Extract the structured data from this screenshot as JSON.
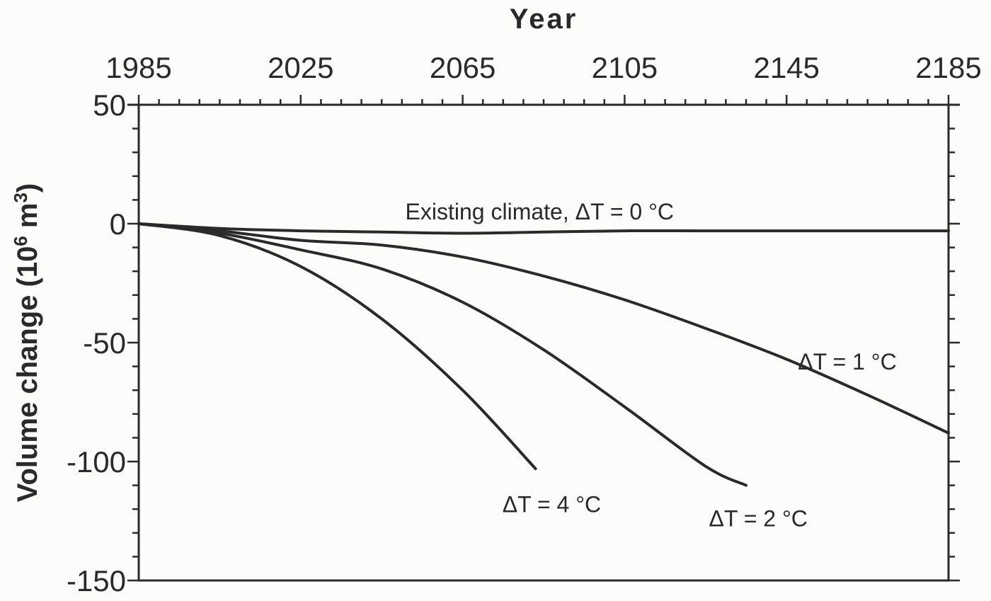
{
  "chart_data": {
    "type": "line",
    "title": "",
    "xlabel": "Year",
    "ylabel": "Volume change (10^6 m^3)",
    "ylabel_parts": {
      "main": "Volume change (10",
      "sup1": "6",
      "mid": " m",
      "sup2": "3",
      "end": ")"
    },
    "xlim": [
      1985,
      2185
    ],
    "ylim": [
      -150,
      50
    ],
    "x_ticks": [
      1985,
      2025,
      2065,
      2105,
      2145,
      2185
    ],
    "x_tick_labels": [
      "1985",
      "2025",
      "2065",
      "2105",
      "2145",
      "2185"
    ],
    "y_ticks": [
      50,
      0,
      -50,
      -100,
      -150
    ],
    "y_tick_labels": [
      "50",
      "0",
      "-50",
      "-100",
      "-150"
    ],
    "x_axis_position": "top",
    "grid": false,
    "legend": "none (inline annotations)",
    "series": [
      {
        "name": "Existing climate, ΔT = 0 °C",
        "x": [
          1985,
          2005,
          2025,
          2045,
          2065,
          2085,
          2105,
          2125,
          2145,
          2165,
          2185
        ],
        "values": [
          0,
          -2,
          -3,
          -3.5,
          -4,
          -3.5,
          -3,
          -3,
          -3,
          -3,
          -3
        ]
      },
      {
        "name": "ΔT = 1 °C",
        "x": [
          1985,
          2005,
          2025,
          2045,
          2065,
          2085,
          2105,
          2125,
          2145,
          2165,
          2185
        ],
        "values": [
          0,
          -3,
          -7,
          -9,
          -14,
          -22,
          -32,
          -44,
          -57,
          -72,
          -88
        ]
      },
      {
        "name": "ΔT = 2 °C",
        "x": [
          1985,
          2005,
          2025,
          2045,
          2065,
          2085,
          2105,
          2125,
          2135
        ],
        "values": [
          0,
          -4,
          -11,
          -19,
          -33,
          -53,
          -77,
          -102,
          -110
        ]
      },
      {
        "name": "ΔT = 4 °C",
        "x": [
          1985,
          2005,
          2025,
          2045,
          2065,
          2083
        ],
        "values": [
          0,
          -5,
          -18,
          -40,
          -70,
          -103
        ]
      }
    ],
    "annotations": [
      {
        "text": "Existing climate, ΔT = 0 °C",
        "x": 2084,
        "y": 5
      },
      {
        "text": "ΔT = 1 °C",
        "x": 2160,
        "y": -58
      },
      {
        "text": "ΔT = 2 °C",
        "x": 2138,
        "y": -124
      },
      {
        "text": "ΔT = 4 °C",
        "x": 2087,
        "y": -118
      }
    ]
  }
}
